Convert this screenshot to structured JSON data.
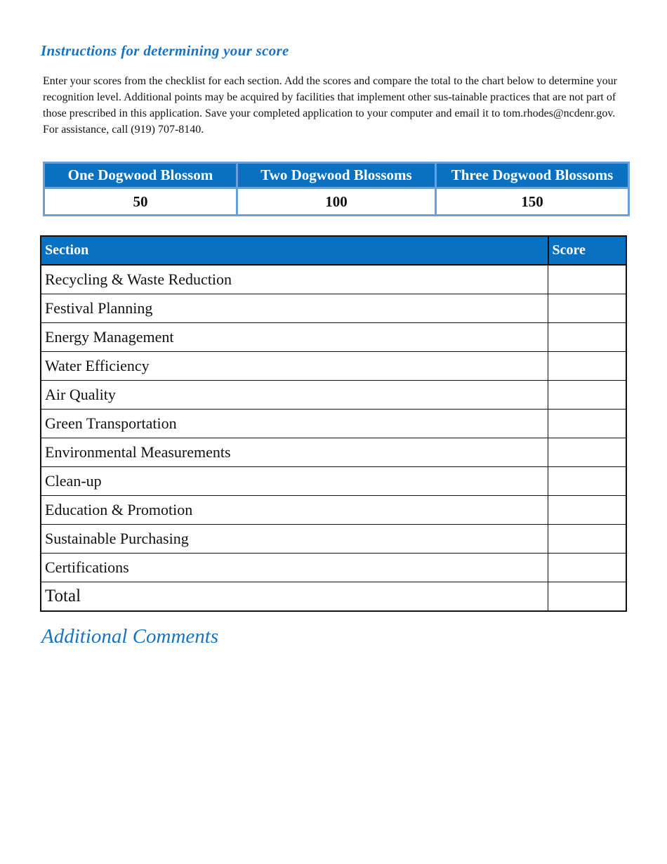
{
  "instructions": {
    "title": "Instructions for determining your score",
    "body": "Enter your scores from the  checklist for each section. Add the scores and compare the total to the chart below to determine your recognition level. Additional points may be acquired by facilities that implement other sus-tainable practices that are not part of those prescribed in this application. Save your completed application to your computer and email it to tom.rhodes@ncdenr.gov. For assistance, call (919) 707-8140."
  },
  "levels": {
    "headers": [
      "One Dogwood Blossom",
      "Two Dogwood Blossoms",
      "Three Dogwood Blossoms"
    ],
    "values": [
      "50",
      "100",
      "150"
    ]
  },
  "score_table": {
    "headers": {
      "section": "Section",
      "score": "Score"
    },
    "rows": [
      {
        "section": "Recycling & Waste Reduction",
        "score": ""
      },
      {
        "section": "Festival Planning",
        "score": ""
      },
      {
        "section": "Energy Management",
        "score": ""
      },
      {
        "section": "Water Efficiency",
        "score": ""
      },
      {
        "section": "Air Quality",
        "score": ""
      },
      {
        "section": "Green Transportation",
        "score": ""
      },
      {
        "section": "Environmental Measurements",
        "score": ""
      },
      {
        "section": "Clean-up",
        "score": ""
      },
      {
        "section": "Education & Promotion",
        "score": ""
      },
      {
        "section": "Sustainable Purchasing",
        "score": ""
      },
      {
        "section": "Certifications",
        "score": ""
      }
    ],
    "total": {
      "section": "Total",
      "score": ""
    }
  },
  "comments": {
    "title": "Additional Comments"
  },
  "colors": {
    "accent": "#0a70c0",
    "heading": "#1a73c0",
    "level_border": "#6aa0d8"
  }
}
